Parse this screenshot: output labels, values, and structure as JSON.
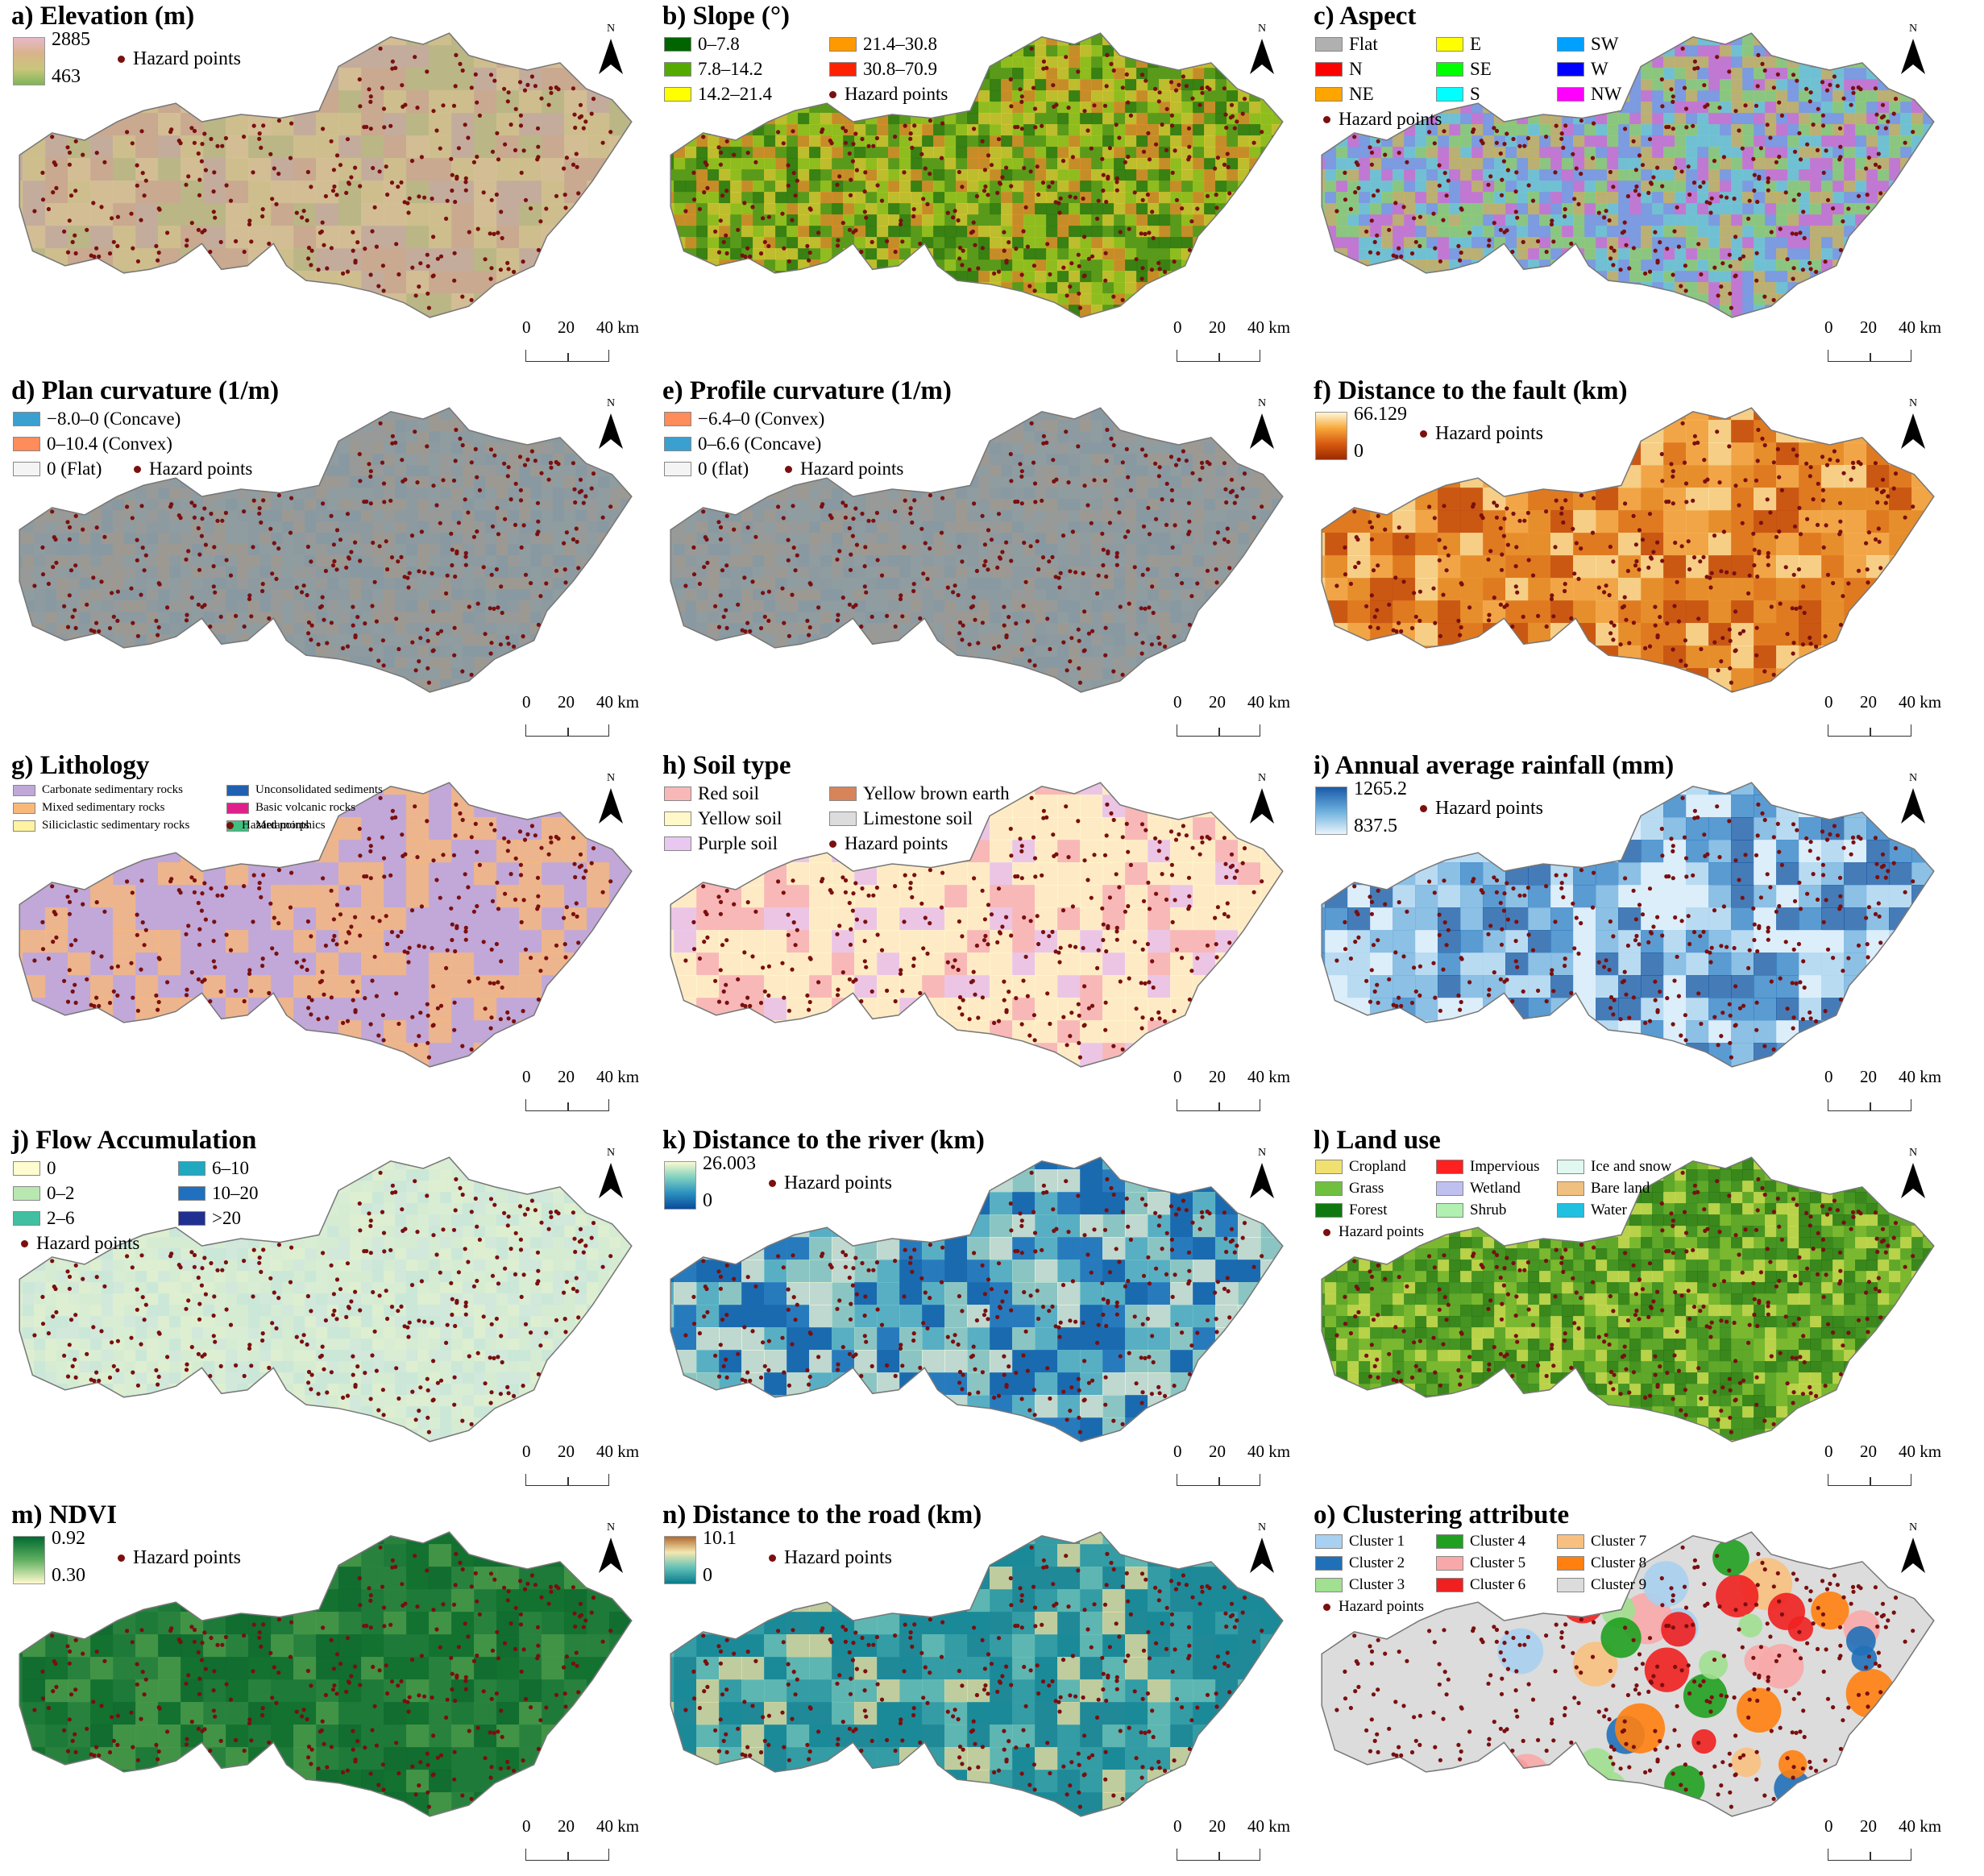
{
  "common": {
    "north_label": "N",
    "scale_labels": [
      "0",
      "20",
      "40 km"
    ],
    "hazard_label": "Hazard points",
    "hazard_color": "#7a0f0f",
    "boundary_color": "#777777"
  },
  "panels": [
    {
      "id": "a",
      "title": "a) Elevation (m)",
      "legend_type": "ramp",
      "ramp": {
        "max": "2885",
        "min": "463",
        "colors": [
          "#e8b8c8",
          "#d8b48a",
          "#c9c67a",
          "#7fb55a"
        ]
      },
      "map_colors": [
        "#c9a98f",
        "#d6c296",
        "#cfc38c",
        "#b8b983",
        "#c3ad9f"
      ]
    },
    {
      "id": "b",
      "title": "b) Slope (°)",
      "legend_type": "classes",
      "columns": 2,
      "classes": [
        {
          "label": "0–7.8",
          "color": "#006400"
        },
        {
          "label": "7.8–14.2",
          "color": "#55aa00"
        },
        {
          "label": "14.2–21.4",
          "color": "#ffff00"
        },
        {
          "label": "21.4–30.8",
          "color": "#ff9900"
        },
        {
          "label": "30.8–70.9",
          "color": "#ff2200"
        }
      ],
      "map_colors": [
        "#5a9a1a",
        "#2f7a10",
        "#9cc41f",
        "#d6c632",
        "#e08a2a"
      ]
    },
    {
      "id": "c",
      "title": "c) Aspect",
      "legend_type": "classes",
      "columns": 3,
      "classes": [
        {
          "label": "Flat",
          "color": "#b0b0b0"
        },
        {
          "label": "N",
          "color": "#ff0000"
        },
        {
          "label": "NE",
          "color": "#ffa500"
        },
        {
          "label": "E",
          "color": "#ffff00"
        },
        {
          "label": "SE",
          "color": "#00ff00"
        },
        {
          "label": "S",
          "color": "#00ffff"
        },
        {
          "label": "SW",
          "color": "#00a0ff"
        },
        {
          "label": "W",
          "color": "#0000ff"
        },
        {
          "label": "NW",
          "color": "#ff00ff"
        }
      ],
      "map_colors": [
        "#7c9be0",
        "#d070d0",
        "#8fd06a",
        "#6ec8d0",
        "#c9b45a"
      ]
    },
    {
      "id": "d",
      "title": "d) Plan curvature (1/m)",
      "legend_type": "classes",
      "columns": 1,
      "classes": [
        {
          "label": "−8.0–0 (Concave)",
          "color": "#3aa0d0"
        },
        {
          "label": "0–10.4 (Convex)",
          "color": "#ff8c5a"
        },
        {
          "label": "0 (Flat)",
          "color": "#f4f4f4"
        }
      ],
      "map_colors": [
        "#8d9aa0",
        "#9a9a96",
        "#8898a2",
        "#a09890",
        "#909ca0"
      ]
    },
    {
      "id": "e",
      "title": "e) Profile curvature (1/m)",
      "legend_type": "classes",
      "columns": 1,
      "classes": [
        {
          "label": "−6.4–0 (Convex)",
          "color": "#ff8c5a"
        },
        {
          "label": "0–6.6 (Concave)",
          "color": "#3aa0d0"
        },
        {
          "label": "0 (flat)",
          "color": "#f4f4f4"
        }
      ],
      "map_colors": [
        "#8d9aa0",
        "#9a9a96",
        "#8898a2",
        "#a09890",
        "#909ca0"
      ]
    },
    {
      "id": "f",
      "title": "f) Distance to the fault (km)",
      "legend_type": "ramp",
      "ramp": {
        "max": "66.129",
        "min": "0",
        "colors": [
          "#fff6d8",
          "#f7a83a",
          "#d85a10",
          "#9a2a00"
        ]
      },
      "map_colors": [
        "#e07a20",
        "#f5b050",
        "#c45010",
        "#fbe4a0",
        "#e89430"
      ]
    },
    {
      "id": "g",
      "title": "g) Lithology",
      "legend_type": "classes",
      "columns": 2,
      "small": true,
      "classes": [
        {
          "label": "Carbonate sedimentary rocks",
          "color": "#c0a8d8"
        },
        {
          "label": "Mixed sedimentary rocks",
          "color": "#f8b87a"
        },
        {
          "label": "Siliciclastic sedimentary rocks",
          "color": "#fff2a0"
        },
        {
          "label": "Unconsolidated sediments",
          "color": "#2060b0"
        },
        {
          "label": "Basic volcanic rocks",
          "color": "#e0208a"
        },
        {
          "label": "Metamorphics",
          "color": "#40c080"
        }
      ],
      "map_colors": [
        "#c0a8d8",
        "#f8b87a",
        "#c0a8d8",
        "#f8b87a",
        "#c0a8d8"
      ]
    },
    {
      "id": "h",
      "title": "h) Soil type",
      "legend_type": "classes",
      "columns": 2,
      "classes": [
        {
          "label": "Red soil",
          "color": "#f8b8b8"
        },
        {
          "label": "Yellow soil",
          "color": "#fff8c8"
        },
        {
          "label": "Purple soil",
          "color": "#e8c8f0"
        },
        {
          "label": "Yellow brown earth",
          "color": "#d8845a"
        },
        {
          "label": "Limestone soil",
          "color": "#dcdcdc"
        }
      ],
      "map_colors": [
        "#f8b8b8",
        "#e8c8f0",
        "#fff8c8",
        "#fff8c8",
        "#fff8c8"
      ]
    },
    {
      "id": "i",
      "title": "i) Annual average rainfall (mm)",
      "legend_type": "ramp",
      "ramp": {
        "max": "1265.2",
        "min": "837.5",
        "colors": [
          "#1a5aa8",
          "#6aaedc",
          "#e8f4fc"
        ]
      },
      "map_colors": [
        "#dceefa",
        "#b0d6f0",
        "#78b4e0",
        "#3a86c8",
        "#1f5fa8"
      ]
    },
    {
      "id": "j",
      "title": "j) Flow Accumulation",
      "legend_type": "classes",
      "columns": 2,
      "classes": [
        {
          "label": "0",
          "color": "#fffcd0"
        },
        {
          "label": "0–2",
          "color": "#b8e8b0"
        },
        {
          "label": "2–6",
          "color": "#40c0a0"
        },
        {
          "label": "6–10",
          "color": "#20a8c0"
        },
        {
          "label": "10–20",
          "color": "#2070c0"
        },
        {
          "label": ">20",
          "color": "#203090"
        }
      ],
      "map_colors": [
        "#d6ecd2",
        "#c8e6da",
        "#dff0d0",
        "#cfe7dd",
        "#d8eed4"
      ]
    },
    {
      "id": "k",
      "title": "k) Distance to the river (km)",
      "legend_type": "ramp",
      "ramp": {
        "max": "26.003",
        "min": "0",
        "colors": [
          "#fafad0",
          "#7ed0c0",
          "#2a90c0",
          "#0a4a9a"
        ]
      },
      "map_colors": [
        "#1a6ab0",
        "#68c0c8",
        "#e8f4d8",
        "#2a80c0",
        "#a8dcc8"
      ]
    },
    {
      "id": "l",
      "title": "l) Land use",
      "legend_type": "classes",
      "columns": 3,
      "small_mid": true,
      "classes": [
        {
          "label": "Cropland",
          "color": "#f0e070"
        },
        {
          "label": "Grass",
          "color": "#70c040"
        },
        {
          "label": "Forest",
          "color": "#107810"
        },
        {
          "label": "Impervious",
          "color": "#ff2020"
        },
        {
          "label": "Wetland",
          "color": "#c0c0f0"
        },
        {
          "label": "Shrub",
          "color": "#b0f0b0"
        },
        {
          "label": "Ice and snow",
          "color": "#e0f8f0"
        },
        {
          "label": "Bare land",
          "color": "#f0c080"
        },
        {
          "label": "Water",
          "color": "#20c0e0"
        }
      ],
      "map_colors": [
        "#7ab830",
        "#3a8c20",
        "#c8d850",
        "#5aa428",
        "#2a7a18"
      ]
    },
    {
      "id": "m",
      "title": "m) NDVI",
      "legend_type": "ramp",
      "ramp": {
        "max": "0.92",
        "min": "0.30",
        "colors": [
          "#006a30",
          "#60b060",
          "#fffad0"
        ]
      },
      "map_colors": [
        "#1e7a3a",
        "#0e6a2e",
        "#4a9a4a",
        "#10702e",
        "#2a8440"
      ]
    },
    {
      "id": "n",
      "title": "n) Distance to the road (km)",
      "legend_type": "ramp",
      "ramp": {
        "max": "10.1",
        "min": "0",
        "colors": [
          "#b06a30",
          "#f5e8b0",
          "#60c0b8",
          "#0a7a8a"
        ]
      },
      "map_colors": [
        "#1a8a98",
        "#3aa0a8",
        "#6ec0b8",
        "#208898",
        "#e8dca0"
      ]
    },
    {
      "id": "o",
      "title": "o) Clustering attribute",
      "legend_type": "classes",
      "columns": 3,
      "small_mid": true,
      "classes": [
        {
          "label": "Cluster 1",
          "color": "#a8d0f0"
        },
        {
          "label": "Cluster 2",
          "color": "#2070b8"
        },
        {
          "label": "Cluster 3",
          "color": "#a0e090"
        },
        {
          "label": "Cluster 4",
          "color": "#20a020"
        },
        {
          "label": "Cluster 5",
          "color": "#f8a8a8"
        },
        {
          "label": "Cluster 6",
          "color": "#f02020"
        },
        {
          "label": "Cluster 7",
          "color": "#f8c080"
        },
        {
          "label": "Cluster 8",
          "color": "#ff8010"
        },
        {
          "label": "Cluster 9",
          "color": "#dcdcdc"
        }
      ],
      "map_colors": [
        "#dcdcdc",
        "#dcdcdc",
        "#dcdcdc",
        "#dcdcdc",
        "#dcdcdc"
      ]
    }
  ]
}
